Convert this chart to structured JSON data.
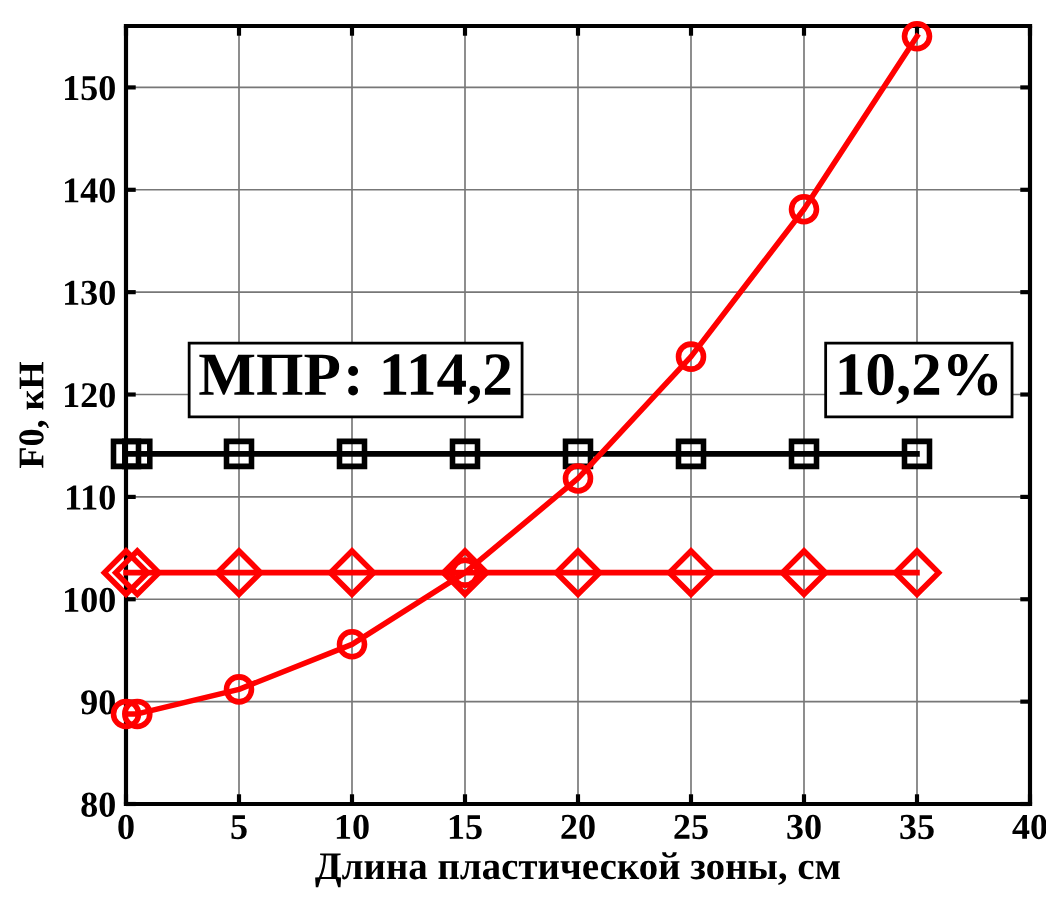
{
  "chart_data": {
    "type": "line",
    "xlabel": "Длина пластической зоны, см",
    "ylabel": "F0, кН",
    "x": [
      0,
      0.5,
      5,
      10,
      15,
      20,
      25,
      30,
      35
    ],
    "series": [
      {
        "color": "#ff0000",
        "marker": "circle",
        "values": [
          88.8,
          88.8,
          91.2,
          95.6,
          102.6,
          111.8,
          123.7,
          138.1,
          155
        ]
      },
      {
        "color": "#000000",
        "marker": "square",
        "values": [
          114.2,
          114.2,
          114.2,
          114.2,
          114.2,
          114.2,
          114.2,
          114.2,
          114.2
        ]
      },
      {
        "color": "#ff0000",
        "marker": "diamond",
        "values": [
          102.6,
          102.6,
          102.6,
          102.6,
          102.6,
          102.6,
          102.6,
          102.6,
          102.6
        ]
      }
    ],
    "annotations": [
      "МПР: 114,2",
      "10,2%"
    ],
    "xlim": [
      0,
      40
    ],
    "xticks": [
      0,
      5,
      10,
      15,
      20,
      25,
      30,
      35,
      40
    ],
    "ylim": [
      80,
      156
    ],
    "yticks": [
      80,
      90,
      100,
      110,
      120,
      130,
      140,
      150
    ],
    "grid": true,
    "legend": false,
    "line_style": "solid"
  }
}
